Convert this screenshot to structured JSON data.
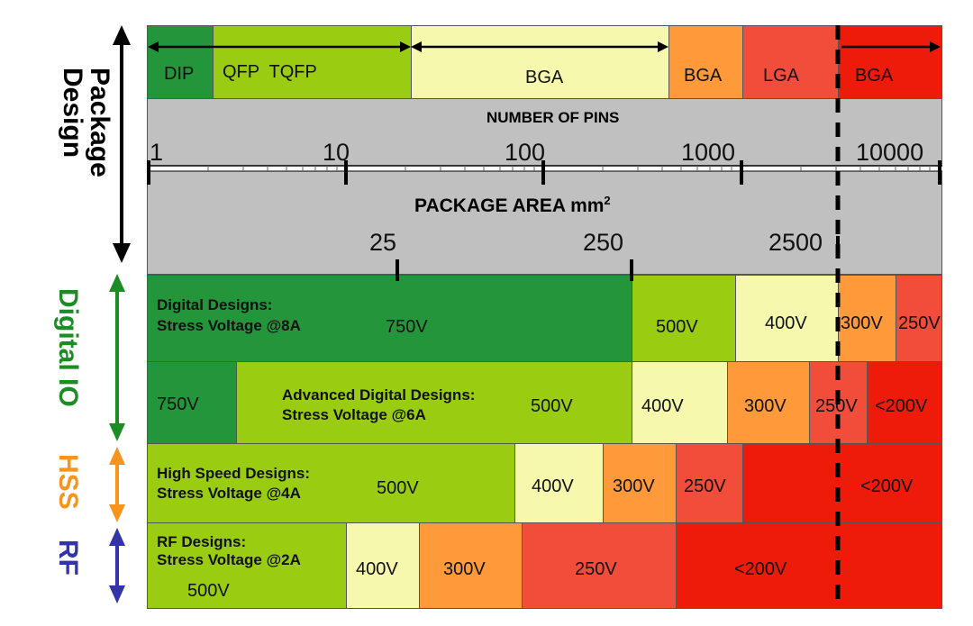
{
  "colors": {
    "dark_green": "#23953a",
    "green": "#9acd12",
    "light_yellow": "#f5f8ad",
    "orange": "#ff9a3a",
    "red": "#f24d3a",
    "deep_red": "#ee1a0a",
    "gray": "#c0c0c0",
    "digital_io_label": "#1d8c25",
    "hss_label": "#f7941d",
    "rf_label": "#3333aa"
  },
  "side_labels": {
    "package_design_1": "Package",
    "package_design_2": "Design",
    "digital_io": "Digital IO",
    "hss": "HSS",
    "rf": "RF"
  },
  "package_row": {
    "dip": "DIP",
    "qfp_tqfp": "QFP  TQFP",
    "bga1": "BGA",
    "bga2": "BGA",
    "lga": "LGA",
    "bga3": "BGA"
  },
  "pins_axis": {
    "title": "NUMBER OF PINS",
    "ticks": [
      "1",
      "10",
      "100",
      "1000",
      "10000"
    ]
  },
  "area_axis": {
    "title": "PACKAGE AREA mm",
    "title_sup": "2",
    "ticks": [
      "25",
      "250",
      "2500"
    ]
  },
  "digital": {
    "title": "Digital Designs:",
    "subtitle": "Stress Voltage @8A",
    "v750": "750V",
    "v500": "500V",
    "v400": "400V",
    "v300": "300V",
    "v250": "250V"
  },
  "advanced": {
    "title": "Advanced Digital Designs:",
    "subtitle": "Stress Voltage @6A",
    "v750": "750V",
    "v500": "500V",
    "v400": "400V",
    "v300": "300V",
    "v250": "250V",
    "vlt200": "<200V"
  },
  "hss_row": {
    "title": "High Speed Designs:",
    "subtitle": "Stress Voltage @4A",
    "v500": "500V",
    "v400": "400V",
    "v300": "300V",
    "v250": "250V",
    "vlt200": "<200V"
  },
  "rf_row": {
    "title": "RF Designs:",
    "subtitle": "Stress Voltage @2A",
    "v500": "500V",
    "v400": "400V",
    "v300": "300V",
    "v250": "250V",
    "vlt200": "<200V"
  }
}
